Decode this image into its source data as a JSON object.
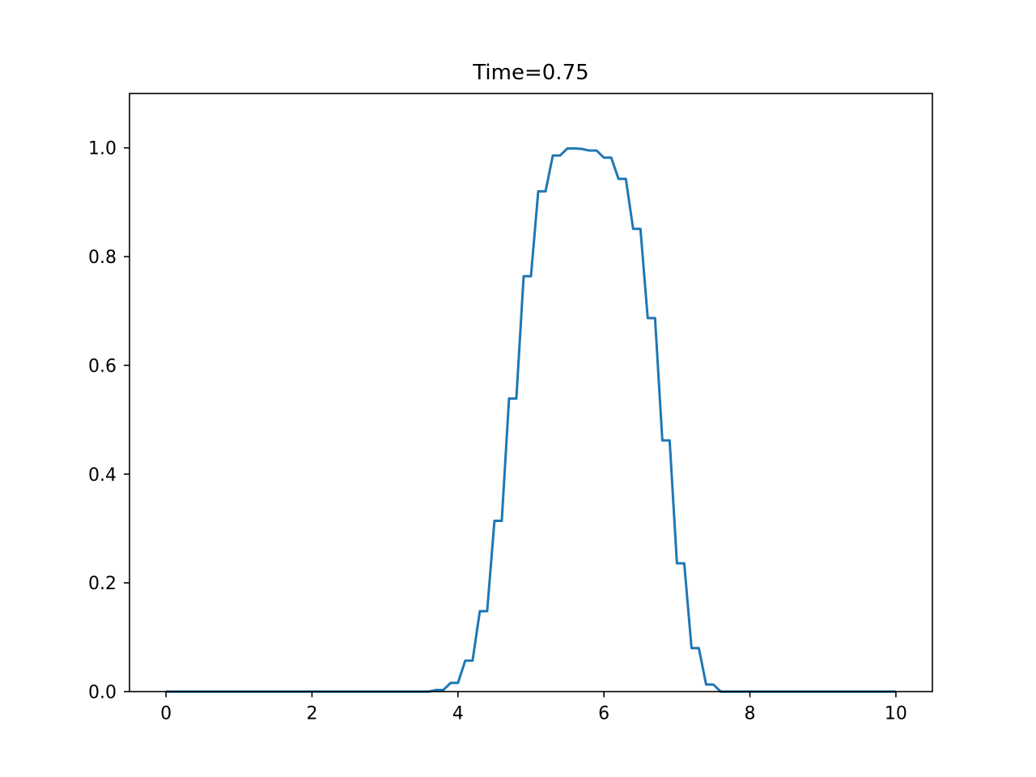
{
  "chart_data": {
    "type": "line",
    "title": "Time=0.75",
    "xlabel": "",
    "ylabel": "",
    "xlim": [
      -0.5,
      10.5
    ],
    "ylim": [
      0.0,
      1.1
    ],
    "grid": false,
    "x_ticks": [
      0,
      2,
      4,
      6,
      8,
      10
    ],
    "x_tick_labels": [
      "0",
      "2",
      "4",
      "6",
      "8",
      "10"
    ],
    "y_ticks": [
      0.0,
      0.2,
      0.4,
      0.6,
      0.8,
      1.0
    ],
    "y_tick_labels": [
      "0.0",
      "0.2",
      "0.4",
      "0.6",
      "0.8",
      "1.0"
    ],
    "series": [
      {
        "color": "#1f77b4",
        "x": [
          0,
          3.5,
          3.6,
          3.7,
          3.8,
          3.9,
          4.0,
          4.1,
          4.2,
          4.3,
          4.4,
          4.5,
          4.6,
          4.7,
          4.8,
          4.9,
          5.0,
          5.1,
          5.2,
          5.3,
          5.4,
          5.5,
          5.6,
          5.7,
          5.8,
          5.9,
          6.0,
          6.1,
          6.2,
          6.3,
          6.4,
          6.5,
          6.6,
          6.7,
          6.8,
          6.9,
          7.0,
          7.1,
          7.2,
          7.3,
          7.4,
          7.5,
          7.6,
          10
        ],
        "y": [
          0.0,
          0.0,
          0.0,
          0.003,
          0.003,
          0.016,
          0.016,
          0.057,
          0.057,
          0.148,
          0.148,
          0.314,
          0.314,
          0.539,
          0.539,
          0.764,
          0.764,
          0.92,
          0.92,
          0.986,
          0.986,
          0.999,
          0.999,
          0.998,
          0.995,
          0.995,
          0.982,
          0.982,
          0.943,
          0.943,
          0.851,
          0.851,
          0.687,
          0.687,
          0.462,
          0.462,
          0.236,
          0.236,
          0.08,
          0.08,
          0.013,
          0.013,
          0.0,
          0.0
        ]
      }
    ]
  }
}
